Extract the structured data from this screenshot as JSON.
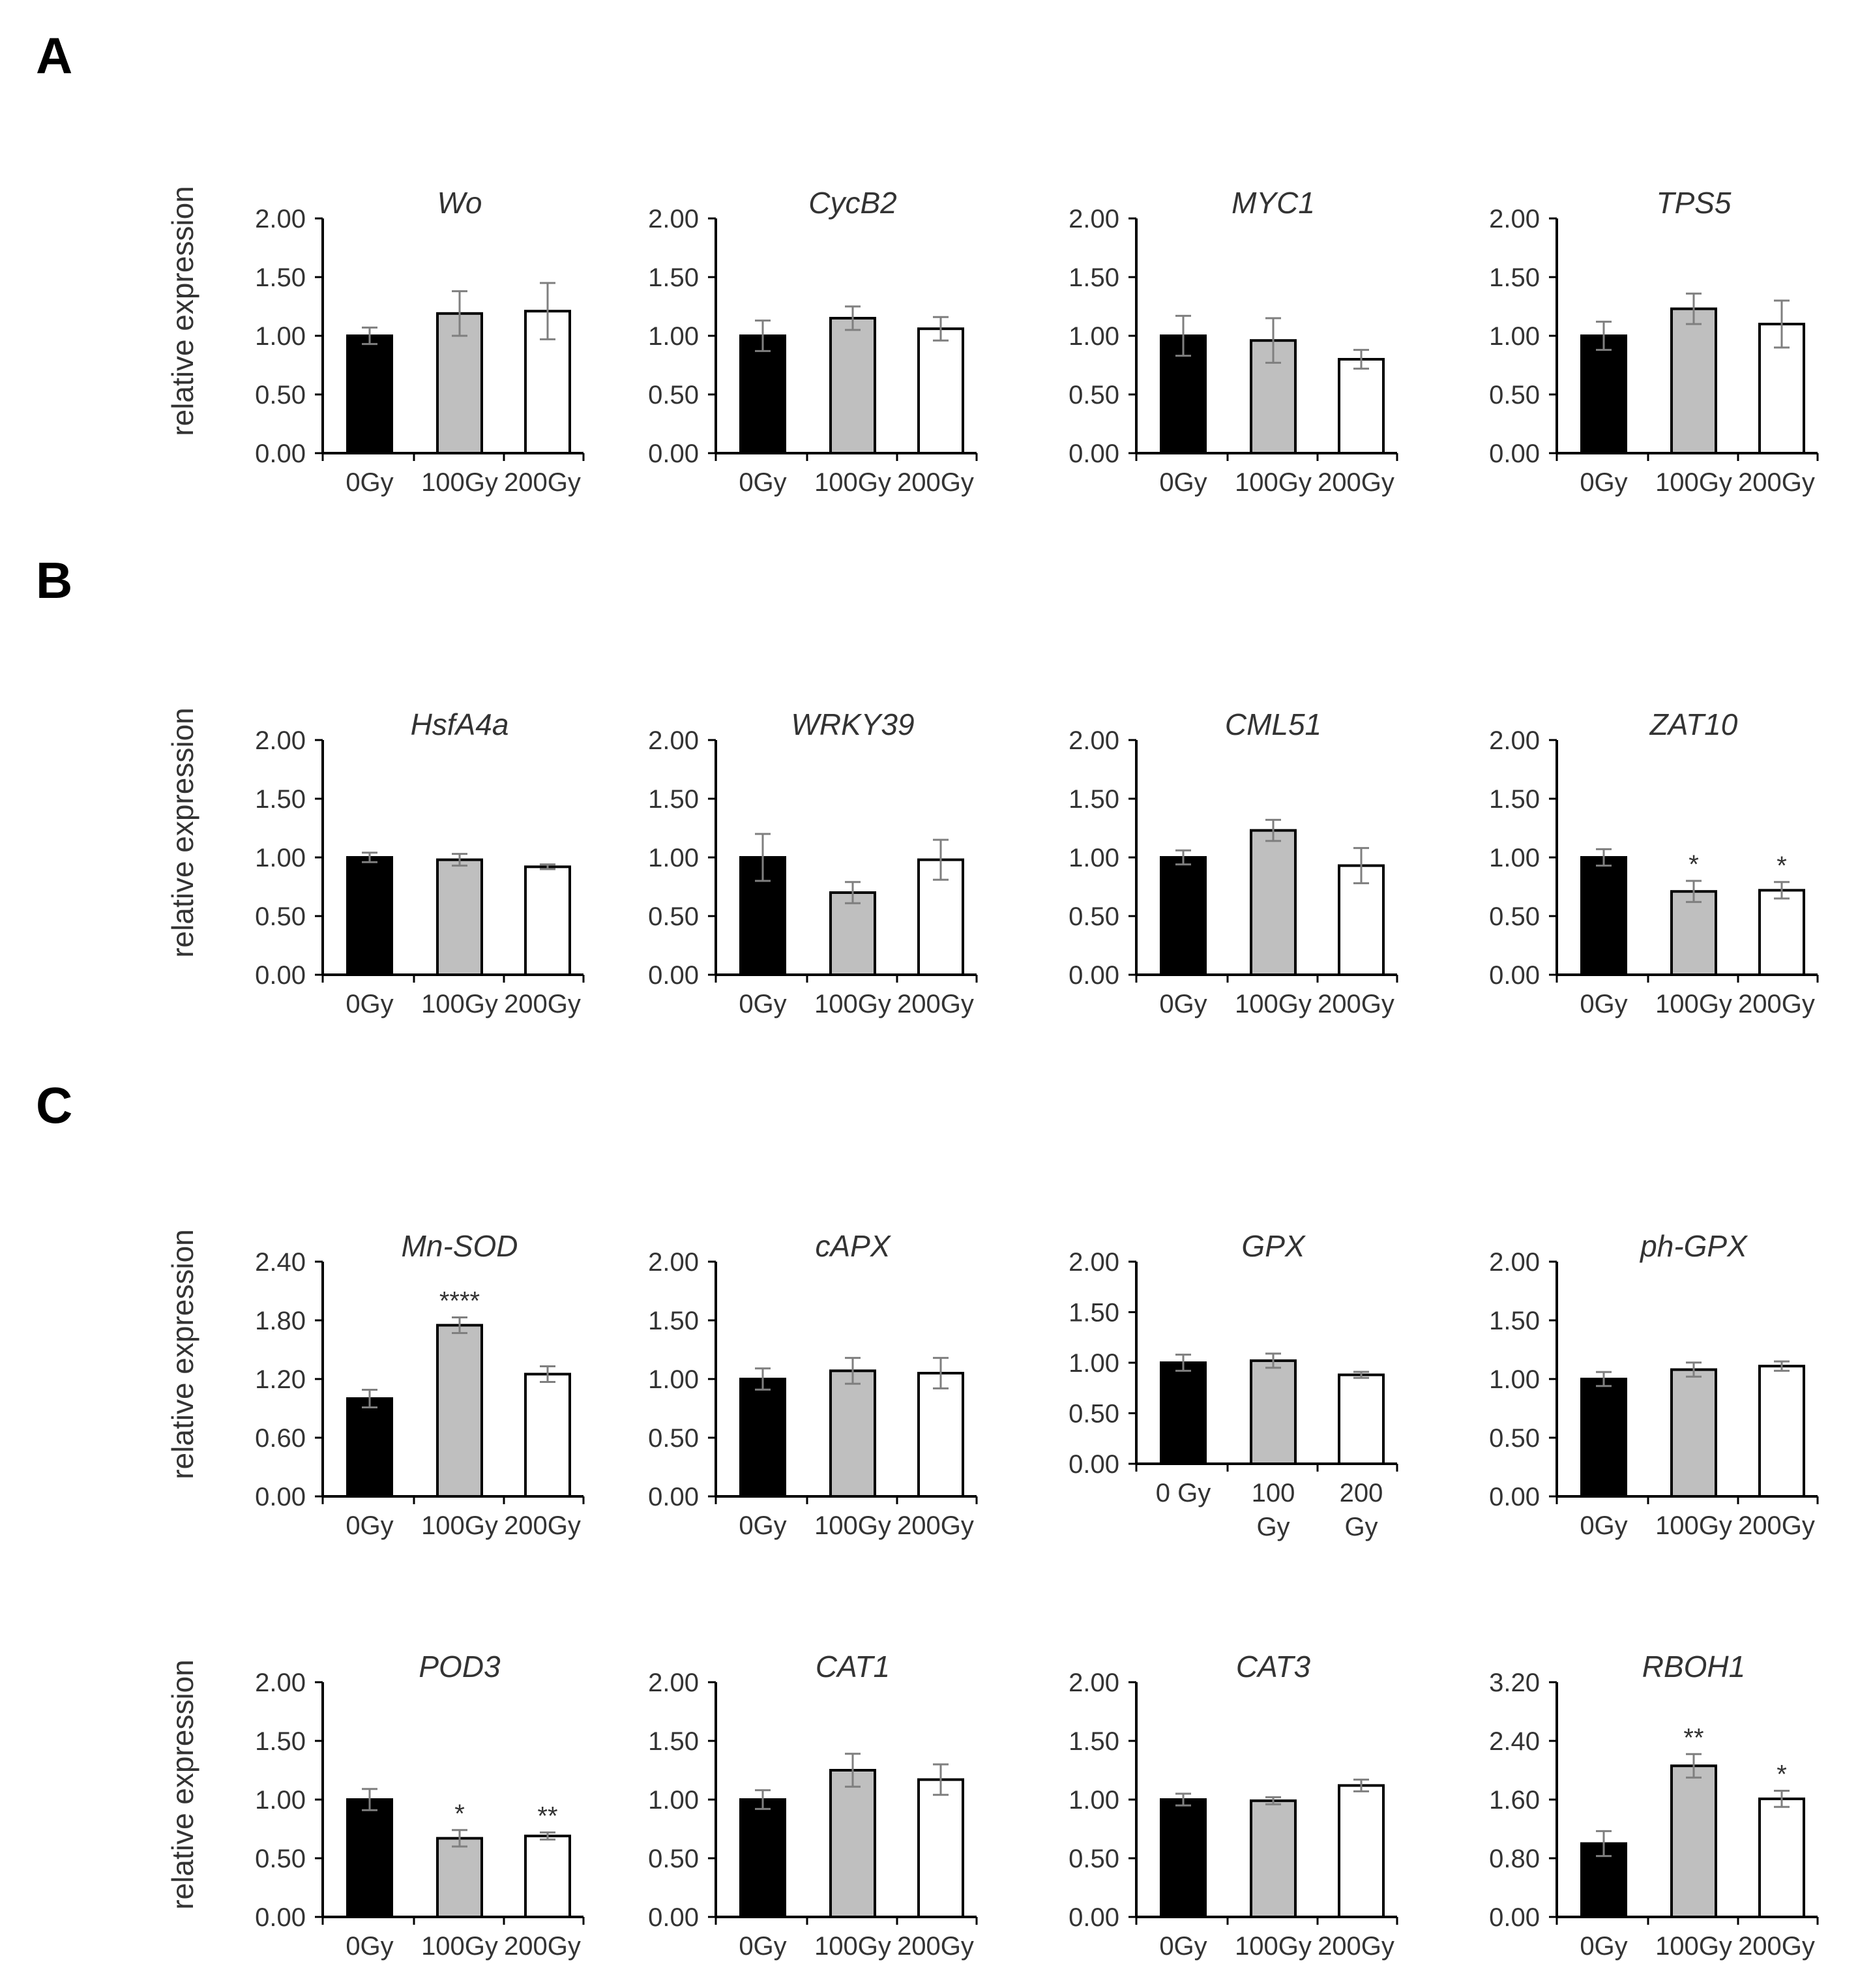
{
  "panels": {
    "A": "A",
    "B": "B",
    "C": "C"
  },
  "ylabels": {
    "row1": "relative expression",
    "row2": "relative expression",
    "row3": "relative expression",
    "row4": "relative expression"
  },
  "colors": {
    "bar_0gy": "#000000",
    "bar_100gy": "#bfbfbf",
    "bar_200gy": "#ffffff",
    "error_bar": "#7f7f7f"
  },
  "chart_data": [
    {
      "type": "bar",
      "title": "Wo",
      "categories": [
        "0Gy",
        "100Gy",
        "200Gy"
      ],
      "values": [
        1.0,
        1.19,
        1.21
      ],
      "errors": [
        0.07,
        0.19,
        0.24
      ],
      "significance": [
        "",
        "",
        ""
      ],
      "yticks": [
        "0.00",
        "0.50",
        "1.00",
        "1.50",
        "2.00"
      ],
      "ylim": [
        0,
        2.0
      ]
    },
    {
      "type": "bar",
      "title": "CycB2",
      "categories": [
        "0Gy",
        "100Gy",
        "200Gy"
      ],
      "values": [
        1.0,
        1.15,
        1.06
      ],
      "errors": [
        0.13,
        0.1,
        0.1
      ],
      "significance": [
        "",
        "",
        ""
      ],
      "yticks": [
        "0.00",
        "0.50",
        "1.00",
        "1.50",
        "2.00"
      ],
      "ylim": [
        0,
        2.0
      ]
    },
    {
      "type": "bar",
      "title": "MYC1",
      "categories": [
        "0Gy",
        "100Gy",
        "200Gy"
      ],
      "values": [
        1.0,
        0.96,
        0.8
      ],
      "errors": [
        0.17,
        0.19,
        0.08
      ],
      "significance": [
        "",
        "",
        ""
      ],
      "yticks": [
        "0.00",
        "0.50",
        "1.00",
        "1.50",
        "2.00"
      ],
      "ylim": [
        0,
        2.0
      ]
    },
    {
      "type": "bar",
      "title": "TPS5",
      "categories": [
        "0Gy",
        "100Gy",
        "200Gy"
      ],
      "values": [
        1.0,
        1.23,
        1.1
      ],
      "errors": [
        0.12,
        0.13,
        0.2
      ],
      "significance": [
        "",
        "",
        ""
      ],
      "yticks": [
        "0.00",
        "0.50",
        "1.00",
        "1.50",
        "2.00"
      ],
      "ylim": [
        0,
        2.0
      ]
    },
    {
      "type": "bar",
      "title": "HsfA4a",
      "categories": [
        "0Gy",
        "100Gy",
        "200Gy"
      ],
      "values": [
        1.0,
        0.98,
        0.92
      ],
      "errors": [
        0.04,
        0.05,
        0.02
      ],
      "significance": [
        "",
        "",
        ""
      ],
      "yticks": [
        "0.00",
        "0.50",
        "1.00",
        "1.50",
        "2.00"
      ],
      "ylim": [
        0,
        2.0
      ]
    },
    {
      "type": "bar",
      "title": "WRKY39",
      "categories": [
        "0Gy",
        "100Gy",
        "200Gy"
      ],
      "values": [
        1.0,
        0.7,
        0.98
      ],
      "errors": [
        0.2,
        0.09,
        0.17
      ],
      "significance": [
        "",
        "",
        ""
      ],
      "yticks": [
        "0.00",
        "0.50",
        "1.00",
        "1.50",
        "2.00"
      ],
      "ylim": [
        0,
        2.0
      ]
    },
    {
      "type": "bar",
      "title": "CML51",
      "categories": [
        "0Gy",
        "100Gy",
        "200Gy"
      ],
      "values": [
        1.0,
        1.23,
        0.93
      ],
      "errors": [
        0.06,
        0.09,
        0.15
      ],
      "significance": [
        "",
        "",
        ""
      ],
      "yticks": [
        "0.00",
        "0.50",
        "1.00",
        "1.50",
        "2.00"
      ],
      "ylim": [
        0,
        2.0
      ]
    },
    {
      "type": "bar",
      "title": "ZAT10",
      "categories": [
        "0Gy",
        "100Gy",
        "200Gy"
      ],
      "values": [
        1.0,
        0.71,
        0.72
      ],
      "errors": [
        0.07,
        0.09,
        0.07
      ],
      "significance": [
        "",
        "*",
        "*"
      ],
      "yticks": [
        "0.00",
        "0.50",
        "1.00",
        "1.50",
        "2.00"
      ],
      "ylim": [
        0,
        2.0
      ]
    },
    {
      "type": "bar",
      "title": "Mn-SOD",
      "categories": [
        "0Gy",
        "100Gy",
        "200Gy"
      ],
      "values": [
        1.0,
        1.75,
        1.25
      ],
      "errors": [
        0.09,
        0.08,
        0.08
      ],
      "significance": [
        "",
        "****",
        ""
      ],
      "yticks": [
        "0.00",
        "0.60",
        "1.20",
        "1.80",
        "2.40"
      ],
      "ylim": [
        0,
        2.4
      ]
    },
    {
      "type": "bar",
      "title": "cAPX",
      "categories": [
        "0Gy",
        "100Gy",
        "200Gy"
      ],
      "values": [
        1.0,
        1.07,
        1.05
      ],
      "errors": [
        0.09,
        0.11,
        0.13
      ],
      "significance": [
        "",
        "",
        ""
      ],
      "yticks": [
        "0.00",
        "0.50",
        "1.00",
        "1.50",
        "2.00"
      ],
      "ylim": [
        0,
        2.0
      ]
    },
    {
      "type": "bar",
      "title": "GPX",
      "categories": [
        "0 Gy",
        "100 Gy",
        "200 Gy"
      ],
      "values": [
        1.0,
        1.02,
        0.88
      ],
      "errors": [
        0.08,
        0.07,
        0.03
      ],
      "significance": [
        "",
        "",
        ""
      ],
      "yticks": [
        "0.00",
        "0.50",
        "1.00",
        "1.50",
        "2.00"
      ],
      "ylim": [
        0,
        2.0
      ]
    },
    {
      "type": "bar",
      "title": "ph-GPX",
      "categories": [
        "0Gy",
        "100Gy",
        "200Gy"
      ],
      "values": [
        1.0,
        1.08,
        1.11
      ],
      "errors": [
        0.06,
        0.06,
        0.04
      ],
      "significance": [
        "",
        "",
        ""
      ],
      "yticks": [
        "0.00",
        "0.50",
        "1.00",
        "1.50",
        "2.00"
      ],
      "ylim": [
        0,
        2.0
      ]
    },
    {
      "type": "bar",
      "title": "POD3",
      "categories": [
        "0Gy",
        "100Gy",
        "200Gy"
      ],
      "values": [
        1.0,
        0.67,
        0.69
      ],
      "errors": [
        0.09,
        0.07,
        0.03
      ],
      "significance": [
        "",
        "*",
        "**"
      ],
      "yticks": [
        "0.00",
        "0.50",
        "1.00",
        "1.50",
        "2.00"
      ],
      "ylim": [
        0,
        2.0
      ]
    },
    {
      "type": "bar",
      "title": "CAT1",
      "categories": [
        "0Gy",
        "100Gy",
        "200Gy"
      ],
      "values": [
        1.0,
        1.25,
        1.17
      ],
      "errors": [
        0.08,
        0.14,
        0.13
      ],
      "significance": [
        "",
        "",
        ""
      ],
      "yticks": [
        "0.00",
        "0.50",
        "1.00",
        "1.50",
        "2.00"
      ],
      "ylim": [
        0,
        2.0
      ]
    },
    {
      "type": "bar",
      "title": "CAT3",
      "categories": [
        "0Gy",
        "100Gy",
        "200Gy"
      ],
      "values": [
        1.0,
        0.99,
        1.12
      ],
      "errors": [
        0.05,
        0.03,
        0.05
      ],
      "significance": [
        "",
        "",
        ""
      ],
      "yticks": [
        "0.00",
        "0.50",
        "1.00",
        "1.50",
        "2.00"
      ],
      "ylim": [
        0,
        2.0
      ]
    },
    {
      "type": "bar",
      "title": "RBOH1",
      "categories": [
        "0Gy",
        "100Gy",
        "200Gy"
      ],
      "values": [
        1.0,
        2.06,
        1.61
      ],
      "errors": [
        0.17,
        0.16,
        0.11
      ],
      "significance": [
        "",
        "**",
        "*"
      ],
      "yticks": [
        "0.00",
        "0.80",
        "1.60",
        "2.40",
        "3.20"
      ],
      "ylim": [
        0,
        3.2
      ]
    }
  ]
}
